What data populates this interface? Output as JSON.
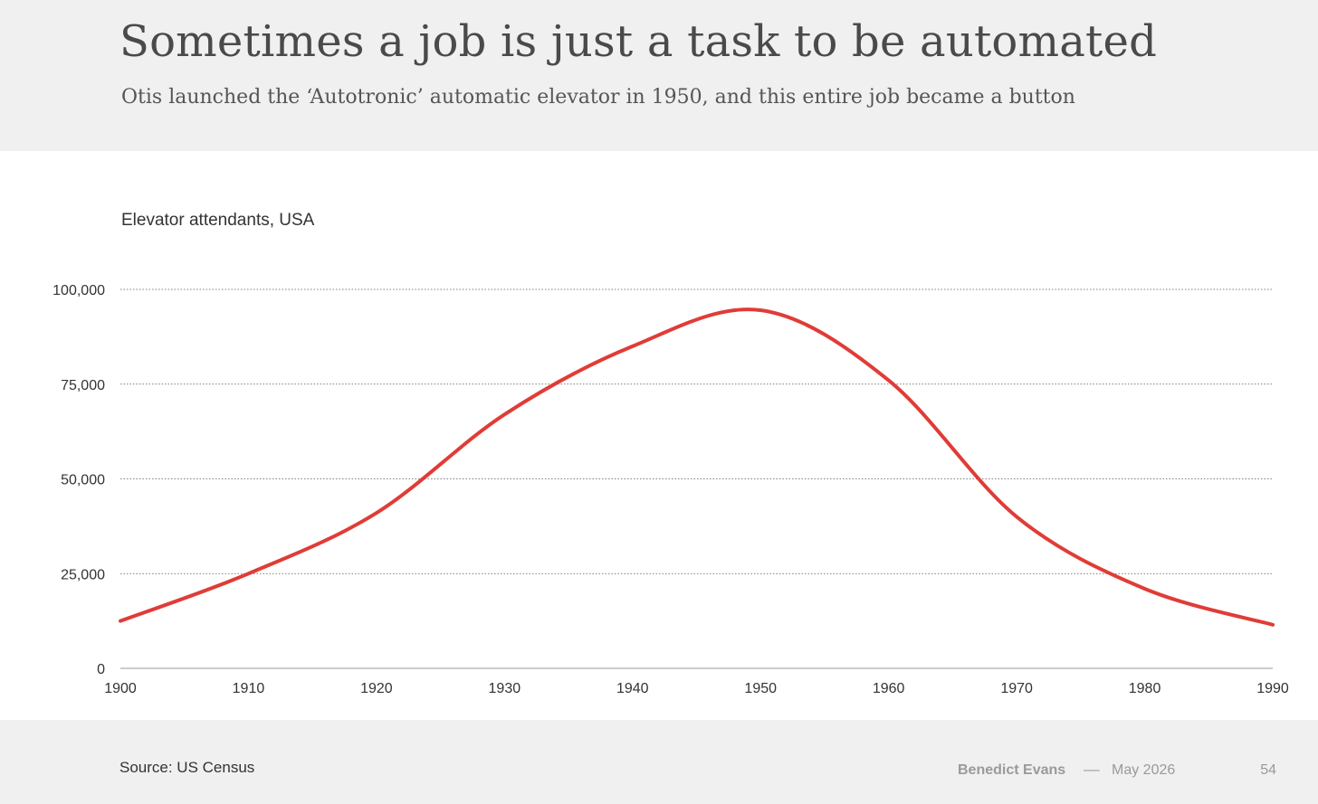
{
  "header": {
    "title": "Sometimes a job is just a task to be automated",
    "subtitle": "Otis launched the ‘Autotronic’ automatic elevator in 1950, and this entire job became a button"
  },
  "footer": {
    "source": "Source: US Census",
    "author": "Benedict Evans",
    "separator": "––",
    "date": "May 2026",
    "page_number": "54"
  },
  "chart_data": {
    "type": "line",
    "title": "Elevator attendants, USA",
    "xlabel": "",
    "ylabel": "",
    "x": [
      1900,
      1910,
      1920,
      1930,
      1940,
      1950,
      1960,
      1970,
      1980,
      1990
    ],
    "series": [
      {
        "values": [
          12500,
          25000,
          41000,
          67000,
          85000,
          94500,
          76000,
          40000,
          21000,
          11500
        ]
      }
    ],
    "xticks": [
      "1900",
      "1910",
      "1920",
      "1930",
      "1940",
      "1950",
      "1960",
      "1970",
      "1980",
      "1990"
    ],
    "yticks": [
      "0",
      "25,000",
      "50,000",
      "75,000",
      "100,000"
    ],
    "xlim": [
      1900,
      1990
    ],
    "ylim": [
      0,
      100000
    ],
    "grid": "horizontal dotted",
    "line_color": "#e03c37"
  }
}
